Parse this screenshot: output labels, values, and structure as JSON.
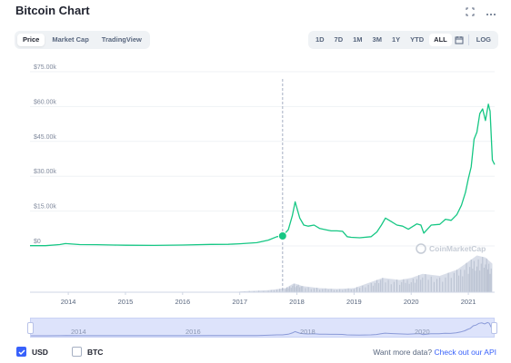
{
  "header": {
    "title": "Bitcoin Chart"
  },
  "icons": {
    "fullscreen": "fullscreen-icon",
    "more": "more-icon",
    "calendar": "calendar-icon"
  },
  "tabs": [
    {
      "label": "Price",
      "active": true
    },
    {
      "label": "Market Cap",
      "active": false
    },
    {
      "label": "TradingView",
      "active": false
    }
  ],
  "ranges": [
    {
      "label": "1D",
      "active": false
    },
    {
      "label": "7D",
      "active": false
    },
    {
      "label": "1M",
      "active": false
    },
    {
      "label": "3M",
      "active": false
    },
    {
      "label": "1Y",
      "active": false
    },
    {
      "label": "YTD",
      "active": false
    },
    {
      "label": "ALL",
      "active": true
    }
  ],
  "log_label": "LOG",
  "watermark": "CoinMarketCap",
  "colors": {
    "accent": "#3861fb",
    "line": "#16c784",
    "volume": "#cfd6e4",
    "grid": "#eff2f5",
    "navigator": "#dde3fb"
  },
  "chart_data": {
    "type": "line",
    "y_ticks": [
      "$0",
      "$15.00k",
      "$30.00k",
      "$45.00k",
      "$60.00k",
      "$75.00k"
    ],
    "ylim": [
      0,
      75000
    ],
    "x_ticks": [
      "2014",
      "2015",
      "2016",
      "2017",
      "2018",
      "2019",
      "2020",
      "2021"
    ],
    "xlim": [
      2013.33,
      2021.46
    ],
    "grid": true,
    "hover_x": 2017.75,
    "series": [
      {
        "x": [
          2013.33,
          2013.6,
          2013.85,
          2013.95,
          2014.2,
          2014.5,
          2014.8,
          2015.0,
          2015.5,
          2016.0,
          2016.5,
          2016.8,
          2017.0,
          2017.3,
          2017.5,
          2017.65,
          2017.75,
          2017.85,
          2017.92,
          2017.97,
          2018.05,
          2018.12,
          2018.2,
          2018.3,
          2018.4,
          2018.5,
          2018.6,
          2018.7,
          2018.8,
          2018.88,
          2018.95,
          2019.1,
          2019.3,
          2019.4,
          2019.48,
          2019.55,
          2019.65,
          2019.75,
          2019.85,
          2019.95,
          2020.1,
          2020.17,
          2020.22,
          2020.35,
          2020.5,
          2020.6,
          2020.7,
          2020.8,
          2020.88,
          2020.95,
          2021.0,
          2021.05,
          2021.1,
          2021.15,
          2021.2,
          2021.25,
          2021.3,
          2021.35,
          2021.38,
          2021.42,
          2021.46
        ],
        "y": [
          120,
          100,
          600,
          1000,
          600,
          550,
          400,
          300,
          250,
          400,
          650,
          700,
          950,
          1400,
          2500,
          4000,
          4300,
          7000,
          13000,
          19000,
          12000,
          9000,
          8500,
          9000,
          7500,
          7000,
          6500,
          6500,
          6300,
          4000,
          3700,
          3500,
          4000,
          6000,
          9000,
          12000,
          10500,
          9000,
          8500,
          7200,
          9500,
          9000,
          5500,
          9000,
          9300,
          11500,
          11000,
          13500,
          17500,
          23000,
          29000,
          34000,
          46000,
          49000,
          57000,
          59000,
          54000,
          61000,
          58000,
          37000,
          35000
        ]
      }
    ],
    "volume": {
      "x": [
        2017.0,
        2017.5,
        2017.8,
        2017.95,
        2018.1,
        2018.4,
        2018.7,
        2019.0,
        2019.3,
        2019.5,
        2019.8,
        2020.0,
        2020.2,
        2020.5,
        2020.8,
        2021.0,
        2021.15,
        2021.3,
        2021.42
      ],
      "v": [
        0.02,
        0.05,
        0.1,
        0.22,
        0.15,
        0.1,
        0.08,
        0.1,
        0.25,
        0.35,
        0.3,
        0.35,
        0.45,
        0.4,
        0.55,
        0.75,
        0.9,
        0.85,
        0.7
      ]
    }
  },
  "navigator": {
    "labels": [
      "2014",
      "2016",
      "2018",
      "2020"
    ]
  },
  "footer": {
    "usd_label": "USD",
    "btc_label": "BTC",
    "api_prefix": "Want more data?",
    "api_link": "Check out our API"
  }
}
